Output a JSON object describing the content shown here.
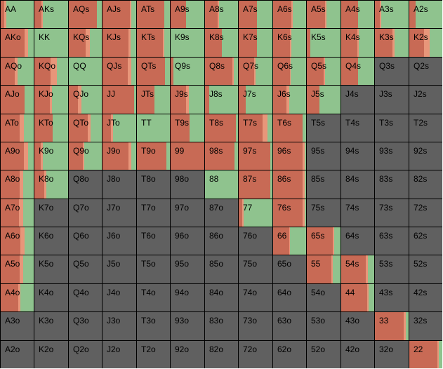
{
  "colors": {
    "empty": "#606060",
    "red": "#c86a55",
    "salmon": "#e8967a",
    "green": "#8fc38e",
    "grid_line": "#000000"
  },
  "rows": [
    [
      "AA",
      "AKs",
      "AQs",
      "AJs",
      "ATs",
      "A9s",
      "A8s",
      "A7s",
      "A6s",
      "A5s",
      "A4s",
      "A3s",
      "A2s"
    ],
    [
      "AKo",
      "KK",
      "KQs",
      "KJs",
      "KTs",
      "K9s",
      "K8s",
      "K7s",
      "K6s",
      "K5s",
      "K4s",
      "K3s",
      "K2s"
    ],
    [
      "AQo",
      "KQo",
      "QQ",
      "QJs",
      "QTs",
      "Q9s",
      "Q8s",
      "Q7s",
      "Q6s",
      "Q5s",
      "Q4s",
      "Q3s",
      "Q2s"
    ],
    [
      "AJo",
      "KJo",
      "QJo",
      "JJ",
      "JTs",
      "J9s",
      "J8s",
      "J7s",
      "J6s",
      "J5s",
      "J4s",
      "J3s",
      "J2s"
    ],
    [
      "ATo",
      "KTo",
      "QTo",
      "JTo",
      "TT",
      "T9s",
      "T8s",
      "T7s",
      "T6s",
      "T5s",
      "T4s",
      "T3s",
      "T2s"
    ],
    [
      "A9o",
      "K9o",
      "Q9o",
      "J9o",
      "T9o",
      "99",
      "98s",
      "97s",
      "96s",
      "95s",
      "94s",
      "93s",
      "92s"
    ],
    [
      "A8o",
      "K8o",
      "Q8o",
      "J8o",
      "T8o",
      "98o",
      "88",
      "87s",
      "86s",
      "85s",
      "84s",
      "83s",
      "82s"
    ],
    [
      "A7o",
      "K7o",
      "Q7o",
      "J7o",
      "T7o",
      "97o",
      "87o",
      "77",
      "76s",
      "75s",
      "74s",
      "73s",
      "72s"
    ],
    [
      "A6o",
      "K6o",
      "Q6o",
      "J6o",
      "T6o",
      "96o",
      "86o",
      "76o",
      "66",
      "65s",
      "64s",
      "63s",
      "62s"
    ],
    [
      "A5o",
      "K5o",
      "Q5o",
      "J5o",
      "T5o",
      "95o",
      "85o",
      "75o",
      "65o",
      "55",
      "54s",
      "53s",
      "52s"
    ],
    [
      "A4o",
      "K4o",
      "Q4o",
      "J4o",
      "T4o",
      "94o",
      "84o",
      "74o",
      "64o",
      "54o",
      "44",
      "43s",
      "42s"
    ],
    [
      "A3o",
      "K3o",
      "Q3o",
      "J3o",
      "T3o",
      "93o",
      "83o",
      "73o",
      "63o",
      "53o",
      "43o",
      "33",
      "32s"
    ],
    [
      "A2o",
      "K2o",
      "Q2o",
      "J2o",
      "T2o",
      "92o",
      "82o",
      "72o",
      "62o",
      "52o",
      "42o",
      "32o",
      "22"
    ]
  ],
  "mix": [
    [
      [
        0.1,
        0.08,
        0.82
      ],
      [
        0.2,
        0.04,
        0.76
      ],
      [
        0.86,
        0.0,
        0.14
      ],
      [
        0.82,
        0.03,
        0.15
      ],
      [
        0.84,
        0.0,
        0.16
      ],
      [
        0.45,
        0.0,
        0.55
      ],
      [
        0.38,
        0.04,
        0.58
      ],
      [
        0.55,
        0.0,
        0.45
      ],
      [
        0.55,
        0.04,
        0.41
      ],
      [
        0.55,
        0.04,
        0.41
      ],
      [
        0.5,
        0.0,
        0.5
      ],
      [
        0.14,
        0.04,
        0.82
      ],
      [
        0.2,
        0.0,
        0.8
      ]
    ],
    [
      [
        0.72,
        0.1,
        0.18
      ],
      [
        0.0,
        0.0,
        1.0
      ],
      [
        0.5,
        0.14,
        0.36
      ],
      [
        0.78,
        0.05,
        0.17
      ],
      [
        0.78,
        0.05,
        0.17
      ],
      [
        0.0,
        0.0,
        1.0
      ],
      [
        0.5,
        0.0,
        0.5
      ],
      [
        0.54,
        0.0,
        0.46
      ],
      [
        0.52,
        0.04,
        0.44
      ],
      [
        0.1,
        0.0,
        0.9
      ],
      [
        0.49,
        0.05,
        0.46
      ],
      [
        0.53,
        0.05,
        0.42
      ],
      [
        0.45,
        0.17,
        0.38
      ]
    ],
    [
      [
        0.42,
        0.1,
        0.48
      ],
      [
        0.48,
        0.18,
        0.34
      ],
      [
        0.0,
        0.0,
        1.0
      ],
      [
        0.75,
        0.1,
        0.15
      ],
      [
        0.86,
        0.0,
        0.14
      ],
      [
        0.08,
        0.0,
        0.92
      ],
      [
        0.82,
        0.05,
        0.13
      ],
      [
        0.45,
        0.04,
        0.51
      ],
      [
        0.52,
        0.02,
        0.46
      ],
      [
        0.5,
        0.04,
        0.46
      ],
      [
        0.5,
        0.0,
        0.5
      ],
      [
        0.0,
        0.0,
        0.0
      ],
      [
        0.0,
        0.0,
        0.0
      ]
    ],
    [
      [
        0.73,
        0.0,
        0.27
      ],
      [
        0.45,
        0.08,
        0.47
      ],
      [
        0.28,
        0.1,
        0.62
      ],
      [
        0.94,
        0.0,
        0.06
      ],
      [
        0.53,
        0.0,
        0.47
      ],
      [
        0.45,
        0.1,
        0.45
      ],
      [
        0.12,
        0.0,
        0.88
      ],
      [
        0.2,
        0.0,
        0.8
      ],
      [
        0.4,
        0.08,
        0.52
      ],
      [
        0.38,
        0.0,
        0.62
      ],
      [
        0.0,
        0.0,
        0.0
      ],
      [
        0.0,
        0.0,
        0.0
      ],
      [
        0.0,
        0.0,
        0.0
      ]
    ],
    [
      [
        0.58,
        0.12,
        0.3
      ],
      [
        0.55,
        0.0,
        0.45
      ],
      [
        0.58,
        0.08,
        0.34
      ],
      [
        0.24,
        0.07,
        0.69
      ],
      [
        0.0,
        0.0,
        1.0
      ],
      [
        0.56,
        0.0,
        0.44
      ],
      [
        0.94,
        0.0,
        0.06
      ],
      [
        0.7,
        0.15,
        0.15
      ],
      [
        0.9,
        0.0,
        0.1
      ],
      [
        0.0,
        0.0,
        0.0
      ],
      [
        0.0,
        0.0,
        0.0
      ],
      [
        0.0,
        0.0,
        0.0
      ],
      [
        0.0,
        0.0,
        0.0
      ]
    ],
    [
      [
        0.7,
        0.12,
        0.18
      ],
      [
        0.18,
        0.06,
        0.76
      ],
      [
        0.42,
        0.05,
        0.53
      ],
      [
        0.78,
        0.08,
        0.14
      ],
      [
        0.9,
        0.0,
        0.1
      ],
      [
        1.0,
        0.0,
        0.0
      ],
      [
        0.9,
        0.0,
        0.1
      ],
      [
        0.94,
        0.0,
        0.06
      ],
      [
        0.9,
        0.05,
        0.05
      ],
      [
        0.0,
        0.0,
        0.0
      ],
      [
        0.0,
        0.0,
        0.0
      ],
      [
        0.0,
        0.0,
        0.0
      ],
      [
        0.0,
        0.0,
        0.0
      ]
    ],
    [
      [
        0.58,
        0.1,
        0.32
      ],
      [
        0.3,
        0.06,
        0.64
      ],
      [
        0.0,
        0.0,
        0.0
      ],
      [
        0.0,
        0.0,
        0.0
      ],
      [
        0.0,
        0.0,
        0.0
      ],
      [
        0.0,
        0.0,
        0.0
      ],
      [
        0.0,
        0.0,
        1.0
      ],
      [
        0.94,
        0.0,
        0.06
      ],
      [
        0.9,
        0.05,
        0.05
      ],
      [
        0.0,
        0.0,
        0.0
      ],
      [
        0.0,
        0.0,
        0.0
      ],
      [
        0.0,
        0.0,
        0.0
      ],
      [
        0.0,
        0.0,
        0.0
      ]
    ],
    [
      [
        0.56,
        0.12,
        0.32
      ],
      [
        0.0,
        0.0,
        0.0
      ],
      [
        0.0,
        0.0,
        0.0
      ],
      [
        0.0,
        0.0,
        0.0
      ],
      [
        0.0,
        0.0,
        0.0
      ],
      [
        0.0,
        0.0,
        0.0
      ],
      [
        0.0,
        0.0,
        0.0
      ],
      [
        0.1,
        0.04,
        0.86
      ],
      [
        0.9,
        0.05,
        0.05
      ],
      [
        0.0,
        0.0,
        0.0
      ],
      [
        0.0,
        0.0,
        0.0
      ],
      [
        0.0,
        0.0,
        0.0
      ],
      [
        0.0,
        0.0,
        0.0
      ]
    ],
    [
      [
        0.6,
        0.12,
        0.28
      ],
      [
        0.0,
        0.0,
        0.0
      ],
      [
        0.0,
        0.0,
        0.0
      ],
      [
        0.0,
        0.0,
        0.0
      ],
      [
        0.0,
        0.0,
        0.0
      ],
      [
        0.0,
        0.0,
        0.0
      ],
      [
        0.0,
        0.0,
        0.0
      ],
      [
        0.0,
        0.0,
        0.0
      ],
      [
        0.48,
        0.04,
        0.48
      ],
      [
        0.78,
        0.04,
        0.18
      ],
      [
        0.0,
        0.0,
        0.0
      ],
      [
        0.0,
        0.0,
        0.0
      ],
      [
        0.0,
        0.0,
        0.0
      ]
    ],
    [
      [
        0.58,
        0.1,
        0.32
      ],
      [
        0.0,
        0.0,
        0.0
      ],
      [
        0.0,
        0.0,
        0.0
      ],
      [
        0.0,
        0.0,
        0.0
      ],
      [
        0.0,
        0.0,
        0.0
      ],
      [
        0.0,
        0.0,
        0.0
      ],
      [
        0.0,
        0.0,
        0.0
      ],
      [
        0.0,
        0.0,
        0.0
      ],
      [
        0.0,
        0.0,
        0.0
      ],
      [
        0.72,
        0.06,
        0.22
      ],
      [
        0.75,
        0.06,
        0.19
      ],
      [
        0.0,
        0.0,
        0.0
      ],
      [
        0.0,
        0.0,
        0.0
      ]
    ],
    [
      [
        0.54,
        0.06,
        0.4
      ],
      [
        0.0,
        0.0,
        0.0
      ],
      [
        0.0,
        0.0,
        0.0
      ],
      [
        0.0,
        0.0,
        0.0
      ],
      [
        0.0,
        0.0,
        0.0
      ],
      [
        0.0,
        0.0,
        0.0
      ],
      [
        0.0,
        0.0,
        0.0
      ],
      [
        0.0,
        0.0,
        0.0
      ],
      [
        0.0,
        0.0,
        0.0
      ],
      [
        0.0,
        0.0,
        0.0
      ],
      [
        0.78,
        0.04,
        0.18
      ],
      [
        0.0,
        0.0,
        0.0
      ],
      [
        0.0,
        0.0,
        0.0
      ]
    ],
    [
      [
        0.0,
        0.0,
        0.0
      ],
      [
        0.0,
        0.0,
        0.0
      ],
      [
        0.0,
        0.0,
        0.0
      ],
      [
        0.0,
        0.0,
        0.0
      ],
      [
        0.0,
        0.0,
        0.0
      ],
      [
        0.0,
        0.0,
        0.0
      ],
      [
        0.0,
        0.0,
        0.0
      ],
      [
        0.0,
        0.0,
        0.0
      ],
      [
        0.0,
        0.0,
        0.0
      ],
      [
        0.0,
        0.0,
        0.0
      ],
      [
        0.0,
        0.0,
        0.0
      ],
      [
        0.86,
        0.05,
        0.09
      ],
      [
        0.0,
        0.0,
        0.0
      ]
    ],
    [
      [
        0.0,
        0.0,
        0.0
      ],
      [
        0.0,
        0.0,
        0.0
      ],
      [
        0.0,
        0.0,
        0.0
      ],
      [
        0.0,
        0.0,
        0.0
      ],
      [
        0.0,
        0.0,
        0.0
      ],
      [
        0.0,
        0.0,
        0.0
      ],
      [
        0.0,
        0.0,
        0.0
      ],
      [
        0.0,
        0.0,
        0.0
      ],
      [
        0.0,
        0.0,
        0.0
      ],
      [
        0.0,
        0.0,
        0.0
      ],
      [
        0.0,
        0.0,
        0.0
      ],
      [
        0.0,
        0.0,
        0.0
      ],
      [
        0.86,
        0.04,
        0.1
      ]
    ]
  ]
}
